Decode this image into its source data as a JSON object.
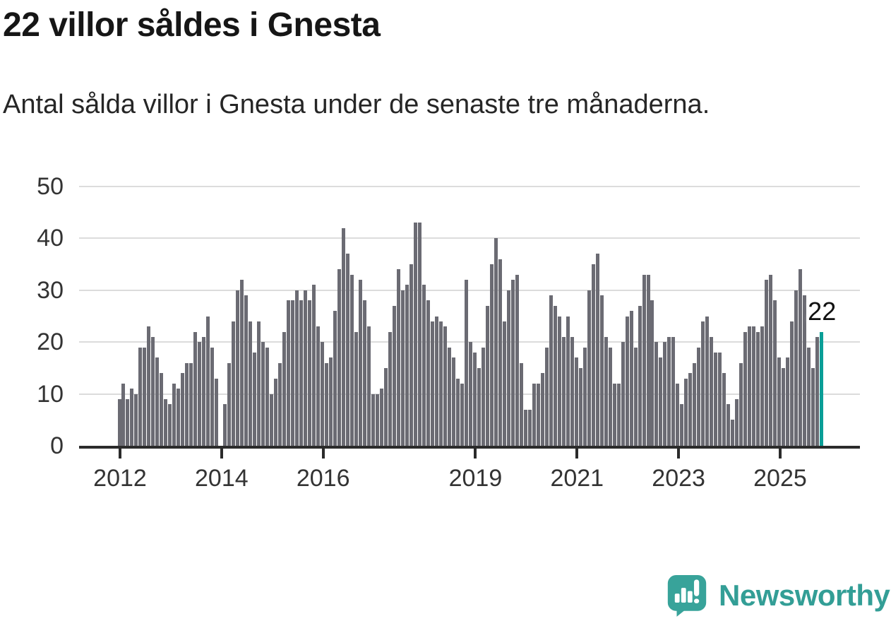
{
  "header": {
    "title": "22 villor såldes i Gnesta",
    "subtitle": "Antal sålda villor i Gnesta under de senaste tre månaderna."
  },
  "footer": {
    "brand_name": "Newsworthy"
  },
  "colors": {
    "bar": "#6b6b73",
    "highlight_bar": "#0a9e97",
    "gridline": "#dcdcdc",
    "axis": "#2b2b2b",
    "tick_label": "#333333",
    "title_text": "#161616",
    "brand_teal": "#339e96"
  },
  "chart_data": {
    "type": "bar",
    "title": "22 villor såldes i Gnesta",
    "subtitle": "Antal sålda villor i Gnesta under de senaste tre månaderna.",
    "frequency": "monthly",
    "x_start_year": 2012,
    "x_tick_labels": [
      "2012",
      "2014",
      "2016",
      "2019",
      "2021",
      "2023",
      "2025"
    ],
    "y_ticks": [
      0,
      10,
      20,
      30,
      40,
      50
    ],
    "ylim": [
      0,
      50
    ],
    "grid": "horizontal",
    "legend": "none",
    "highlight_last_bar": true,
    "last_bar_label": "22",
    "values": [
      9,
      12,
      9,
      11,
      10,
      19,
      19,
      23,
      21,
      17,
      14,
      9,
      8,
      12,
      11,
      14,
      16,
      16,
      22,
      20,
      21,
      25,
      19,
      13,
      0,
      8,
      16,
      24,
      30,
      32,
      29,
      24,
      18,
      24,
      20,
      19,
      10,
      13,
      16,
      22,
      28,
      28,
      30,
      28,
      30,
      28,
      31,
      23,
      20,
      16,
      17,
      26,
      34,
      42,
      37,
      33,
      22,
      32,
      28,
      23,
      10,
      10,
      11,
      15,
      22,
      27,
      34,
      30,
      31,
      35,
      43,
      43,
      31,
      28,
      24,
      25,
      24,
      23,
      19,
      17,
      13,
      12,
      32,
      20,
      18,
      15,
      19,
      27,
      35,
      40,
      36,
      24,
      30,
      32,
      33,
      16,
      7,
      7,
      12,
      12,
      14,
      19,
      29,
      27,
      25,
      21,
      25,
      21,
      17,
      15,
      19,
      30,
      35,
      37,
      29,
      21,
      19,
      12,
      12,
      20,
      25,
      26,
      19,
      27,
      33,
      33,
      28,
      20,
      17,
      20,
      21,
      21,
      12,
      8,
      13,
      14,
      16,
      19,
      24,
      25,
      21,
      18,
      18,
      14,
      8,
      5,
      9,
      16,
      22,
      23,
      23,
      22,
      23,
      32,
      33,
      28,
      17,
      15,
      17,
      24,
      30,
      34,
      29,
      19,
      15,
      21,
      22
    ]
  }
}
